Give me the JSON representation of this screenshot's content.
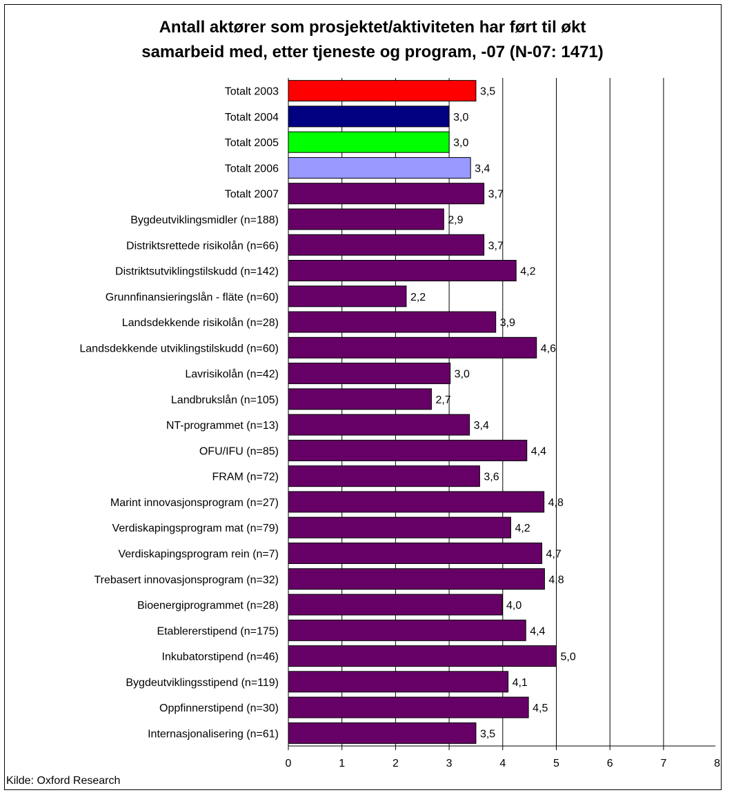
{
  "chart_data": {
    "type": "bar",
    "orientation": "horizontal",
    "title_line1": "Antall aktører som prosjektet/aktiviteten har ført til økt",
    "title_line2": "samarbeid med, etter tjeneste og program, -07 (N-07: 1471)",
    "source": "Kilde: Oxford Research",
    "xlim": [
      0,
      8
    ],
    "xticks": [
      "0",
      "1",
      "2",
      "3",
      "4",
      "5",
      "6",
      "7",
      "8"
    ],
    "grid": "vertical",
    "categories": [
      "Totalt 2003",
      "Totalt 2004",
      "Totalt 2005",
      "Totalt 2006",
      "Totalt 2007",
      "Bygdeutviklingsmidler (n=188)",
      "Distriktsrettede risikolån (n=66)",
      "Distriktsutviklingstilskudd (n=142)",
      "Grunnfinansieringslån - fläte (n=60)",
      "Landsdekkende risikolån (n=28)",
      "Landsdekkende utviklingstilskudd (n=60)",
      "Lavrisikolån (n=42)",
      "Landbrukslån (n=105)",
      "NT-programmet (n=13)",
      "OFU/IFU (n=85)",
      "FRAM (n=72)",
      "Marint innovasjonsprogram (n=27)",
      "Verdiskapingsprogram mat (n=79)",
      "Verdiskapingsprogram rein (n=7)",
      "Trebasert innovasjonsprogram (n=32)",
      "Bioenergiprogrammet (n=28)",
      "Etablererstipend (n=175)",
      "Inkubatorstipend (n=46)",
      "Bygdeutviklingsstipend (n=119)",
      "Oppfinnerstipend (n=30)",
      "Internasjonalisering (n=61)"
    ],
    "values": [
      3.5,
      3.0,
      3.0,
      3.4,
      3.65,
      2.9,
      3.65,
      4.25,
      2.2,
      3.87,
      4.63,
      3.02,
      2.67,
      3.38,
      4.45,
      3.57,
      4.77,
      4.15,
      4.73,
      4.78,
      3.99,
      4.43,
      5.0,
      4.1,
      4.48,
      3.5
    ],
    "value_labels": [
      "3,5",
      "3,0",
      "3,0",
      "3,4",
      "3,7",
      "2,9",
      "3,7",
      "4,2",
      "2,2",
      "3,9",
      "4,6",
      "3,0",
      "2,7",
      "3,4",
      "4,4",
      "3,6",
      "4,8",
      "4,2",
      "4,7",
      "4,8",
      "4,0",
      "4,4",
      "5,0",
      "4,1",
      "4,5",
      "3,5"
    ],
    "bar_colors": [
      "#ff0000",
      "#000080",
      "#00ff00",
      "#9999ff",
      "#660066",
      "#660066",
      "#660066",
      "#660066",
      "#660066",
      "#660066",
      "#660066",
      "#660066",
      "#660066",
      "#660066",
      "#660066",
      "#660066",
      "#660066",
      "#660066",
      "#660066",
      "#660066",
      "#660066",
      "#660066",
      "#660066",
      "#660066",
      "#660066",
      "#660066"
    ]
  }
}
